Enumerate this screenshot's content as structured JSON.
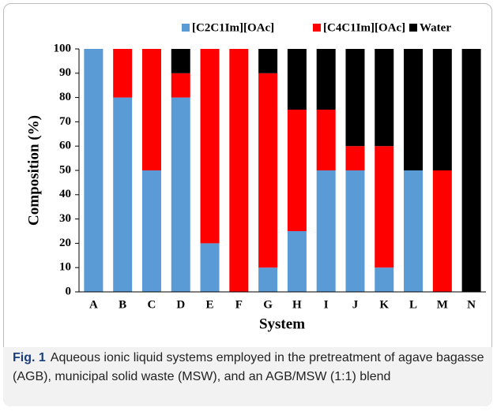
{
  "chart_data": {
    "type": "stacked_bar",
    "x_label": "System",
    "y_label": "Composition (%)",
    "categories": [
      "A",
      "B",
      "C",
      "D",
      "E",
      "F",
      "G",
      "H",
      "I",
      "J",
      "K",
      "L",
      "M",
      "N"
    ],
    "series": [
      {
        "name": "[C2C1Im][OAc]",
        "color": "#5b9bd5",
        "values": [
          100,
          80,
          50,
          80,
          20,
          0,
          10,
          25,
          50,
          50,
          10,
          50,
          0,
          0
        ]
      },
      {
        "name": "[C4C1Im][OAc]",
        "color": "#ff0000",
        "values": [
          0,
          20,
          50,
          10,
          80,
          100,
          80,
          50,
          25,
          10,
          50,
          0,
          50,
          0
        ]
      },
      {
        "name": "Water",
        "color": "#000000",
        "values": [
          0,
          0,
          0,
          10,
          0,
          0,
          10,
          25,
          25,
          40,
          40,
          50,
          50,
          100
        ]
      }
    ],
    "ylim": [
      0,
      100
    ],
    "yticks": [
      0,
      10,
      20,
      30,
      40,
      50,
      60,
      70,
      80,
      90,
      100
    ],
    "grid": false,
    "legend": "top-right"
  },
  "caption": {
    "label": "Fig. 1",
    "text": "Aqueous ionic liquid systems employed in the pretreatment of agave bagasse (AGB), municipal solid waste (MSW), and an AGB/MSW (1:1) blend"
  }
}
